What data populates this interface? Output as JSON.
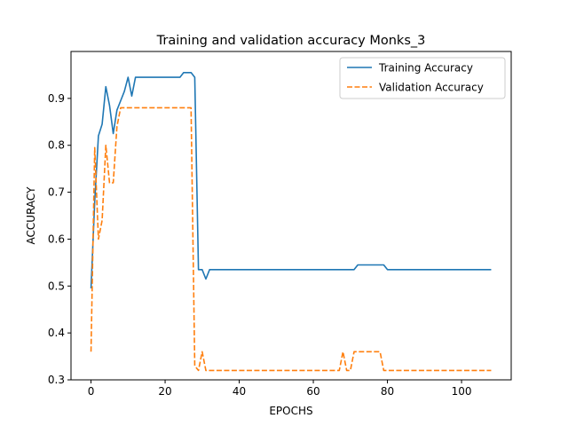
{
  "chart_data": {
    "type": "line",
    "title": "Training and validation accuracy Monks_3",
    "xlabel": "EPOCHS",
    "ylabel": "ACCURACY",
    "xlim": [
      -5.4,
      113.4
    ],
    "ylim": [
      0.3,
      1.0
    ],
    "xticks": [
      0,
      20,
      40,
      60,
      80,
      100
    ],
    "yticks": [
      0.3,
      0.4,
      0.5,
      0.6,
      0.7,
      0.8,
      0.9
    ],
    "legend_position": "top-right",
    "series": [
      {
        "name": "Training Accuracy",
        "color": "#1f77b4",
        "style": "solid",
        "points": [
          [
            0,
            0.495
          ],
          [
            1,
            0.68
          ],
          [
            2,
            0.82
          ],
          [
            3,
            0.845
          ],
          [
            4,
            0.925
          ],
          [
            5,
            0.885
          ],
          [
            6,
            0.825
          ],
          [
            7,
            0.875
          ],
          [
            8,
            0.895
          ],
          [
            9,
            0.915
          ],
          [
            10,
            0.945
          ],
          [
            11,
            0.905
          ],
          [
            12,
            0.945
          ],
          [
            14,
            0.945
          ],
          [
            16,
            0.945
          ],
          [
            18,
            0.945
          ],
          [
            20,
            0.945
          ],
          [
            22,
            0.945
          ],
          [
            24,
            0.945
          ],
          [
            25,
            0.955
          ],
          [
            26,
            0.955
          ],
          [
            27,
            0.955
          ],
          [
            28,
            0.945
          ],
          [
            29,
            0.535
          ],
          [
            30,
            0.535
          ],
          [
            31,
            0.515
          ],
          [
            32,
            0.535
          ],
          [
            40,
            0.535
          ],
          [
            50,
            0.535
          ],
          [
            60,
            0.535
          ],
          [
            71,
            0.535
          ],
          [
            72,
            0.545
          ],
          [
            79,
            0.545
          ],
          [
            80,
            0.535
          ],
          [
            90,
            0.535
          ],
          [
            100,
            0.535
          ],
          [
            108,
            0.535
          ]
        ]
      },
      {
        "name": "Validation Accuracy",
        "color": "#ff7f0e",
        "style": "dashed",
        "points": [
          [
            0,
            0.36
          ],
          [
            1,
            0.795
          ],
          [
            2,
            0.6
          ],
          [
            3,
            0.64
          ],
          [
            4,
            0.8
          ],
          [
            5,
            0.72
          ],
          [
            6,
            0.72
          ],
          [
            7,
            0.84
          ],
          [
            8,
            0.88
          ],
          [
            12,
            0.88
          ],
          [
            20,
            0.88
          ],
          [
            27,
            0.88
          ],
          [
            28,
            0.33
          ],
          [
            29,
            0.32
          ],
          [
            30,
            0.36
          ],
          [
            31,
            0.32
          ],
          [
            40,
            0.32
          ],
          [
            50,
            0.32
          ],
          [
            60,
            0.32
          ],
          [
            67,
            0.32
          ],
          [
            68,
            0.36
          ],
          [
            69,
            0.32
          ],
          [
            70,
            0.32
          ],
          [
            71,
            0.36
          ],
          [
            78,
            0.36
          ],
          [
            79,
            0.32
          ],
          [
            90,
            0.32
          ],
          [
            100,
            0.32
          ],
          [
            108,
            0.32
          ]
        ]
      }
    ]
  }
}
